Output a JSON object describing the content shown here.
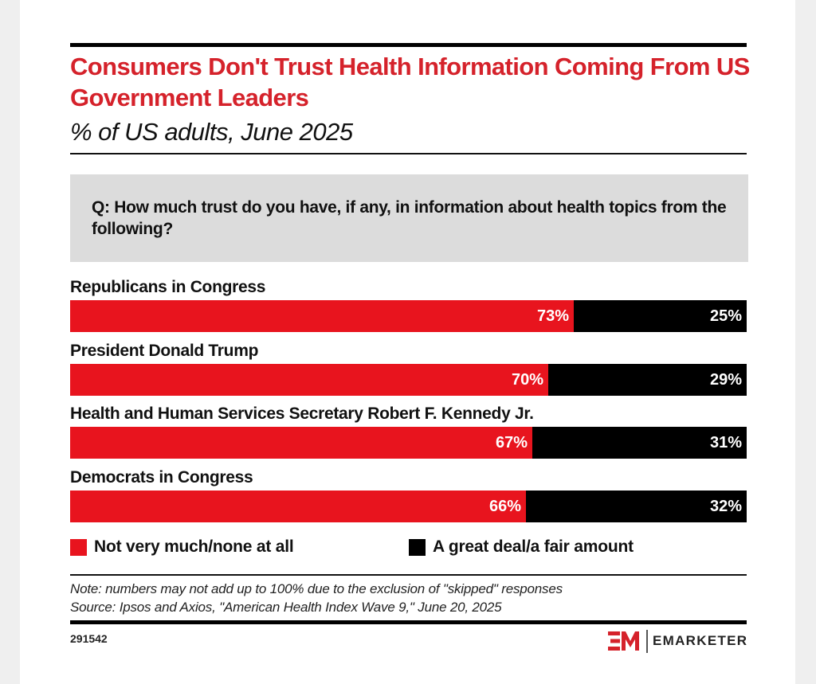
{
  "title": "Consumers Don't Trust Health Information Coming From US Government Leaders",
  "subtitle": "% of US adults, June 2025",
  "question": "Q: How much trust do you have, if any, in information about health topics from the following?",
  "colors": {
    "not_much": "#e8141e",
    "great_deal": "#000000",
    "title": "#d5222b"
  },
  "chart_data": {
    "type": "bar",
    "orientation": "horizontal",
    "stacked": true,
    "title": "Consumers Don't Trust Health Information Coming From US Government Leaders",
    "subtitle": "% of US adults, June 2025",
    "categories": [
      "Republicans in Congress",
      "President Donald Trump",
      "Health and Human Services Secretary Robert F. Kennedy Jr.",
      "Democrats in Congress"
    ],
    "series": [
      {
        "name": "Not very much/none at all",
        "values": [
          73,
          70,
          67,
          66
        ],
        "labels": [
          "73%",
          "70%",
          "67%",
          "66%"
        ]
      },
      {
        "name": "A great deal/a fair amount",
        "values": [
          25,
          29,
          31,
          32
        ],
        "labels": [
          "25%",
          "29%",
          "31%",
          "32%"
        ]
      }
    ],
    "xlabel": "",
    "ylabel": "",
    "grid": false,
    "legend": "bottom"
  },
  "legend": [
    {
      "label": "Not very much/none at all"
    },
    {
      "label": "A great deal/a fair amount"
    }
  ],
  "note": "Note: numbers may not add up to 100% due to the exclusion of \"skipped\" responses",
  "source": "Source: Ipsos and Axios, \"American Health Index Wave 9,\" June 20, 2025",
  "chart_id": "291542",
  "brand": "EMARKETER"
}
